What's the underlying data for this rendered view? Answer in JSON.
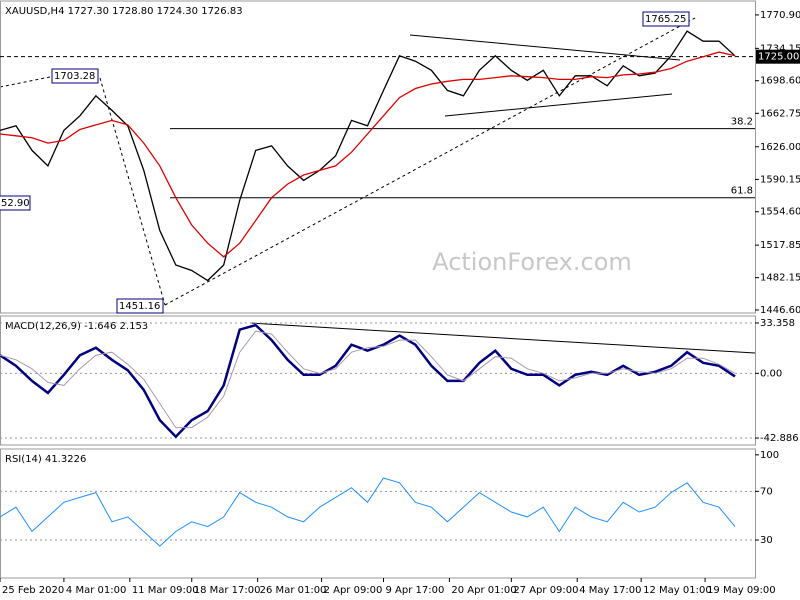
{
  "chart_data": [
    {
      "type": "line",
      "title": "XAUUSD,H4  1727.30 1728.80 1724.30 1726.83",
      "x": [
        0,
        8,
        16,
        24,
        32,
        40,
        48,
        56,
        64,
        72,
        80,
        88,
        96,
        104,
        112,
        120,
        128,
        136,
        144,
        152,
        160,
        168,
        176,
        184,
        192,
        200,
        208,
        216,
        224,
        232,
        240,
        248,
        256,
        264,
        272,
        280,
        288,
        296,
        304,
        312,
        320,
        328,
        336,
        344,
        352,
        360,
        368
      ],
      "xlim": [
        0,
        378
      ],
      "ylim": [
        1443.3,
        1786.2
      ],
      "yticks": [
        {
          "value": 1446.6,
          "label": "1446.60"
        },
        1482.15,
        1517.85,
        {
          "value": 1554.6,
          "label": "1554.60"
        },
        1590.15,
        {
          "value": 1626,
          "label": "1626.00"
        },
        1662.75,
        {
          "value": 1698.6,
          "label": "1698.60"
        },
        1734.15,
        {
          "value": 1770.9,
          "label": "1770.90"
        }
      ],
      "series": [
        {
          "color": "#000000",
          "values": [
            1644,
            1649,
            1622,
            1605,
            1644,
            1660,
            1682,
            1666,
            1649,
            1600,
            1534,
            1496,
            1490,
            1479,
            1496,
            1567,
            1622,
            1627,
            1605,
            1589,
            1600,
            1616,
            1655,
            1649,
            1688,
            1726,
            1720,
            1710,
            1688,
            1682,
            1710,
            1726,
            1710,
            1699,
            1710,
            1682,
            1704,
            1704,
            1693,
            1715,
            1704,
            1707,
            1726,
            1753,
            1742,
            1742,
            1726
          ]
        },
        {
          "color": "#e00000",
          "values": [
            1640,
            1638,
            1636,
            1630,
            1633,
            1645,
            1650,
            1655,
            1650,
            1630,
            1605,
            1570,
            1540,
            1520,
            1505,
            1520,
            1545,
            1570,
            1585,
            1595,
            1600,
            1605,
            1620,
            1640,
            1660,
            1680,
            1690,
            1695,
            1698,
            1700,
            1700,
            1702,
            1704,
            1703,
            1702,
            1700,
            1700,
            1703,
            1702,
            1705,
            1706,
            1708,
            1712,
            1720,
            1725,
            1730,
            1726
          ]
        }
      ],
      "current_price": {
        "value": 1725,
        "label": "1725.00"
      },
      "price_labels": [
        1765.25,
        1703.28,
        1451.16
      ],
      "levels": [
        {
          "value": 1646,
          "label": "38.2"
        },
        {
          "value": 1570,
          "label": "61.8"
        }
      ],
      "annotations": [
        "52.90",
        "ActionForex.com"
      ]
    },
    {
      "type": "line",
      "title": "MACD(12,26,9) -1.646 2.153",
      "x": [
        0,
        8,
        16,
        24,
        32,
        40,
        48,
        56,
        64,
        72,
        80,
        88,
        96,
        104,
        112,
        120,
        128,
        136,
        144,
        152,
        160,
        168,
        176,
        184,
        192,
        200,
        208,
        216,
        224,
        232,
        240,
        248,
        256,
        264,
        272,
        280,
        288,
        296,
        304,
        312,
        320,
        328,
        336,
        344,
        352,
        360,
        368
      ],
      "xlim": [
        0,
        378
      ],
      "ylim": [
        -47.5,
        38
      ],
      "yticks": [
        -42.886,
        {
          "value": 0,
          "label": "0.00"
        },
        33.358
      ],
      "series": [
        {
          "color": "#000080",
          "width": 2.5,
          "values": [
            12,
            5,
            -5,
            -13,
            -1,
            12,
            17,
            9,
            2,
            -11,
            -31,
            -42,
            -31,
            -25,
            -8,
            29,
            32,
            22,
            9,
            -1,
            -1,
            5,
            19,
            15,
            19,
            25,
            19,
            5,
            -5,
            -5,
            7,
            15,
            3,
            -1,
            -1,
            -8,
            -1,
            1,
            -1,
            5,
            -1,
            1,
            5,
            14,
            7,
            5,
            -2
          ]
        },
        {
          "color": "#a898b0",
          "width": 1,
          "values": [
            12,
            9,
            3,
            -6,
            -8,
            3,
            12,
            14,
            6,
            -4,
            -20,
            -36,
            -36,
            -29,
            -15,
            14,
            28,
            26,
            14,
            3,
            0,
            3,
            14,
            17,
            18,
            22,
            22,
            11,
            -1,
            -5,
            3,
            11,
            10,
            3,
            0,
            -5,
            -3,
            0,
            0,
            3,
            1,
            0,
            3,
            10,
            10,
            6,
            0
          ]
        }
      ]
    },
    {
      "type": "line",
      "title": "RSI(14) 41.3226",
      "x": [
        0,
        8,
        16,
        24,
        32,
        40,
        48,
        56,
        64,
        72,
        80,
        88,
        96,
        104,
        112,
        120,
        128,
        136,
        144,
        152,
        160,
        168,
        176,
        184,
        192,
        200,
        208,
        216,
        224,
        232,
        240,
        248,
        256,
        264,
        272,
        280,
        288,
        296,
        304,
        312,
        320,
        328,
        336,
        344,
        352,
        360,
        368
      ],
      "xlim": [
        0,
        378
      ],
      "ylim": [
        -1.2,
        104.8
      ],
      "yticks": [
        30,
        70,
        100
      ],
      "series": [
        {
          "color": "#1e90ff",
          "width": 1,
          "values": [
            49,
            57,
            37,
            49,
            61,
            65,
            69,
            45,
            49,
            37,
            25,
            37,
            45,
            41,
            49,
            69,
            61,
            57,
            49,
            45,
            57,
            65,
            73,
            61,
            81,
            77,
            61,
            57,
            45,
            57,
            69,
            61,
            53,
            49,
            57,
            37,
            57,
            49,
            45,
            61,
            53,
            57,
            69,
            77,
            61,
            57,
            41
          ]
        }
      ],
      "xticks": [
        {
          "value": 0,
          "label": "25 Feb 2020"
        },
        {
          "value": 32,
          "label": "4 Mar 01:00"
        },
        {
          "value": 65,
          "label": "11 Mar 09:00"
        },
        {
          "value": 96,
          "label": "18 Mar 17:00"
        },
        {
          "value": 129,
          "label": "26 Mar 01:00"
        },
        {
          "value": 161,
          "label": "2 Apr 09:00"
        },
        {
          "value": 192,
          "label": "9 Apr 17:00"
        },
        {
          "value": 225,
          "label": "20 Apr 01:00"
        },
        {
          "value": 256,
          "label": "27 Apr 09:00"
        },
        {
          "value": 289,
          "label": "4 May 17:00"
        },
        {
          "value": 321,
          "label": "12 May 01:00"
        },
        {
          "value": 353,
          "label": "19 May 09:00"
        }
      ]
    }
  ]
}
